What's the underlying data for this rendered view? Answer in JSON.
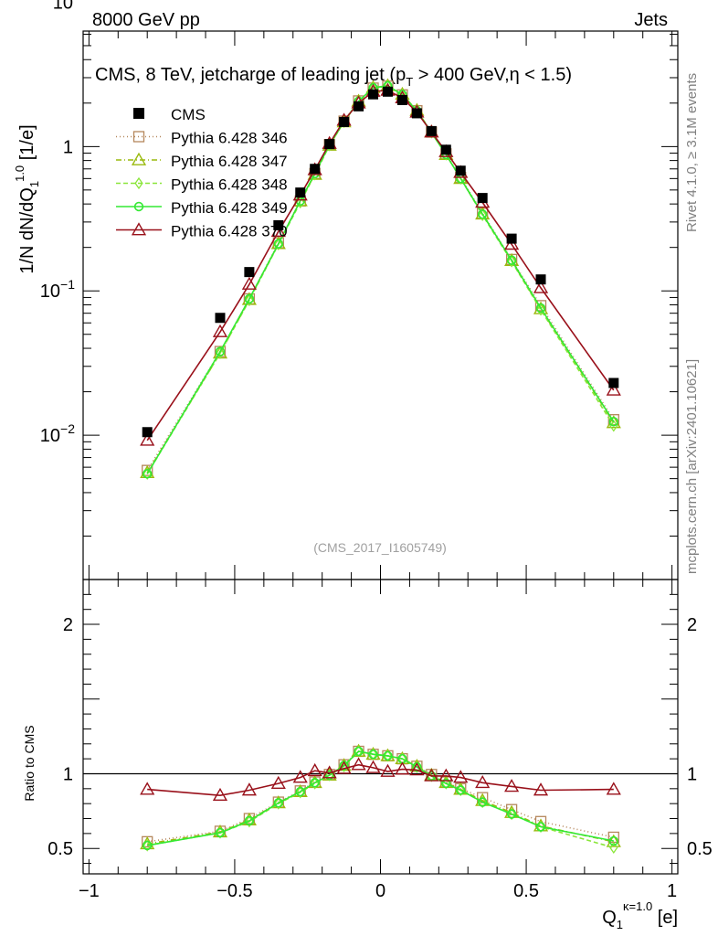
{
  "header": {
    "left": "8000 GeV pp",
    "right": "Jets"
  },
  "side_labels": {
    "rivet": "Rivet 4.1.0, ≥ 3.1M events",
    "mcplots": "mcplots.cern.ch [arXiv:2401.10621]"
  },
  "chart_data": {
    "type": "scatter",
    "title": "CMS, 8 TeV, jetcharge of leading jet (p",
    "title_sub": "T",
    "title_tail": " > 400 GeV,η < 1.5)",
    "watermark": "(CMS_2017_I1605749)",
    "ylabel_main": "1/N dN/dQ",
    "ylabel_sub": "1",
    "ylabel_sup": "1.0",
    "ylabel_unit": " [1/e]",
    "ylabel_ratio": "Ratio to CMS",
    "xlabel_main": "Q",
    "xlabel_sub": "1",
    "xlabel_sup": "κ=1.0",
    "xlabel_unit": " [e]",
    "xlim": [
      -1.02,
      1.02
    ],
    "ylim_main_log10": [
      -3.0,
      0.8
    ],
    "ylim_ratio": [
      0.33,
      2.3
    ],
    "x_ticks": [
      {
        "v": -1,
        "label": "−1"
      },
      {
        "v": -0.5,
        "label": "−0.5"
      },
      {
        "v": 0,
        "label": "0"
      },
      {
        "v": 0.5,
        "label": "0.5"
      },
      {
        "v": 1,
        "label": "1"
      }
    ],
    "y_ticks_main": [
      {
        "exp": -2,
        "label": "10",
        "sup": "−2"
      },
      {
        "exp": -1,
        "label": "10",
        "sup": "−1"
      },
      {
        "exp": 0,
        "label": "1",
        "sup": ""
      },
      {
        "exp": 1,
        "label": "10",
        "sup": ""
      }
    ],
    "y_ticks_ratio": [
      {
        "v": 0.5,
        "label": "0.5"
      },
      {
        "v": 1,
        "label": "1"
      },
      {
        "v": 2,
        "label": "2"
      }
    ],
    "x": [
      -0.8,
      -0.55,
      -0.45,
      -0.35,
      -0.275,
      -0.225,
      -0.175,
      -0.125,
      -0.075,
      -0.025,
      0.025,
      0.075,
      0.125,
      0.175,
      0.225,
      0.275,
      0.35,
      0.45,
      0.55,
      0.8
    ],
    "data": {
      "name": "CMS",
      "values": [
        0.0105,
        0.065,
        0.135,
        0.285,
        0.48,
        0.7,
        1.04,
        1.48,
        1.9,
        2.3,
        2.4,
        2.1,
        1.7,
        1.28,
        0.95,
        0.68,
        0.44,
        0.23,
        0.12,
        0.023
      ]
    },
    "series": [
      {
        "name": "Pythia 6.428 346",
        "color": "#b5875c",
        "dash": "1,3",
        "marker": "square",
        "values": [
          0.0057,
          0.038,
          0.088,
          0.215,
          0.42,
          0.65,
          1.03,
          1.5,
          2.07,
          2.54,
          2.62,
          2.28,
          1.77,
          1.26,
          0.89,
          0.61,
          0.345,
          0.165,
          0.079,
          0.0128
        ]
      },
      {
        "name": "Pythia 6.428 347",
        "color": "#9aba0e",
        "dash": "6,3,1,3",
        "marker": "triangle",
        "values": [
          0.0055,
          0.037,
          0.087,
          0.212,
          0.42,
          0.64,
          1.02,
          1.48,
          2.06,
          2.56,
          2.64,
          2.3,
          1.78,
          1.26,
          0.88,
          0.6,
          0.34,
          0.162,
          0.075,
          0.0122
        ]
      },
      {
        "name": "Pythia 6.428 348",
        "color": "#8ae63a",
        "dash": "5,3",
        "marker": "diamond",
        "values": [
          0.0054,
          0.037,
          0.086,
          0.21,
          0.41,
          0.64,
          1.02,
          1.48,
          2.05,
          2.55,
          2.63,
          2.29,
          1.77,
          1.25,
          0.88,
          0.6,
          0.335,
          0.16,
          0.074,
          0.0116
        ]
      },
      {
        "name": "Pythia 6.428 349",
        "color": "#33e933",
        "dash": "",
        "marker": "circle",
        "values": [
          0.0054,
          0.038,
          0.088,
          0.212,
          0.42,
          0.65,
          1.03,
          1.49,
          2.06,
          2.55,
          2.63,
          2.29,
          1.77,
          1.25,
          0.88,
          0.6,
          0.34,
          0.163,
          0.076,
          0.0124
        ]
      },
      {
        "name": "Pythia 6.428 370",
        "color": "#99101a",
        "dash": "",
        "marker": "triangle-open",
        "values": [
          0.0092,
          0.052,
          0.111,
          0.258,
          0.46,
          0.69,
          1.05,
          1.52,
          2.0,
          2.41,
          2.45,
          2.17,
          1.73,
          1.26,
          0.92,
          0.66,
          0.41,
          0.21,
          0.105,
          0.0205
        ]
      }
    ],
    "ratio": {
      "x": [
        -0.8,
        -0.55,
        -0.45,
        -0.35,
        -0.275,
        -0.225,
        -0.175,
        -0.125,
        -0.075,
        -0.025,
        0.025,
        0.075,
        0.125,
        0.175,
        0.225,
        0.275,
        0.35,
        0.45,
        0.55,
        0.8
      ],
      "series": [
        {
          "name": "Pythia 6.428 346",
          "values": [
            0.545,
            0.615,
            0.7,
            0.81,
            0.885,
            0.945,
            0.995,
            1.06,
            1.15,
            1.13,
            1.12,
            1.1,
            1.05,
            0.995,
            0.945,
            0.9,
            0.84,
            0.76,
            0.68,
            0.575
          ]
        },
        {
          "name": "Pythia 6.428 347",
          "values": [
            0.53,
            0.61,
            0.69,
            0.805,
            0.88,
            0.94,
            0.99,
            1.055,
            1.15,
            1.13,
            1.12,
            1.1,
            1.05,
            0.99,
            0.94,
            0.895,
            0.82,
            0.74,
            0.65,
            0.545
          ]
        },
        {
          "name": "Pythia 6.428 348",
          "values": [
            0.52,
            0.605,
            0.68,
            0.8,
            0.875,
            0.935,
            0.99,
            1.05,
            1.15,
            1.13,
            1.12,
            1.1,
            1.045,
            0.985,
            0.935,
            0.89,
            0.81,
            0.73,
            0.645,
            0.505
          ]
        },
        {
          "name": "Pythia 6.428 349",
          "values": [
            0.52,
            0.605,
            0.685,
            0.805,
            0.88,
            0.94,
            0.99,
            1.055,
            1.15,
            1.13,
            1.12,
            1.1,
            1.045,
            0.985,
            0.935,
            0.89,
            0.81,
            0.73,
            0.645,
            0.55
          ]
        },
        {
          "name": "Pythia 6.428 370",
          "values": [
            0.895,
            0.855,
            0.89,
            0.935,
            0.975,
            1.02,
            1.005,
            1.035,
            1.06,
            1.04,
            1.015,
            1.03,
            1.025,
            0.985,
            0.985,
            0.975,
            0.94,
            0.915,
            0.89,
            0.895
          ]
        }
      ]
    }
  }
}
